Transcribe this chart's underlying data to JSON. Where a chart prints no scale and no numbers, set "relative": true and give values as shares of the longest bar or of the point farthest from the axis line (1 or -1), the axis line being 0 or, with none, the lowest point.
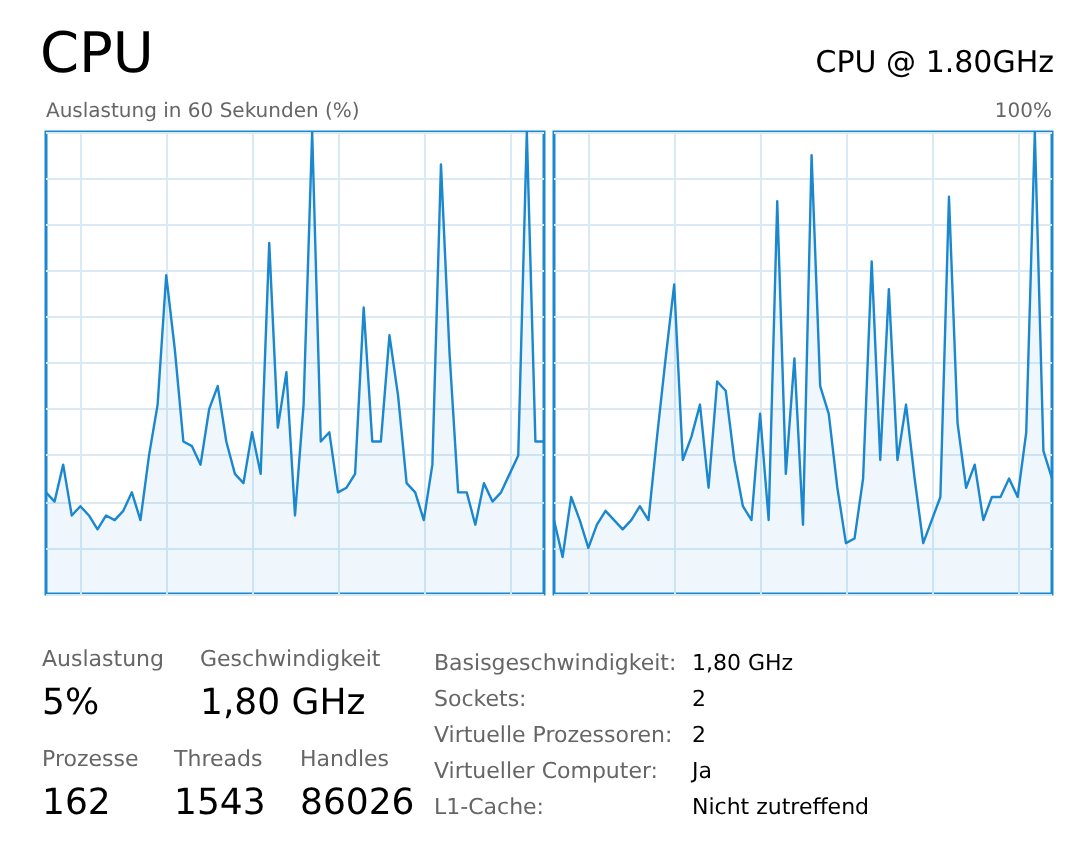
{
  "chart_data": [
    {
      "type": "other",
      "title": "CPU",
      "subtitle": "CPU @ 1.80GHz"
    },
    {
      "type": "area",
      "ylabel": "Auslastung in 60 Sekunden (%)",
      "color": "#1b87cf",
      "grid": true,
      "relative": true,
      "categories": [
        null,
        null,
        null,
        null,
        null,
        null,
        null,
        null,
        null,
        null,
        null,
        null,
        null,
        null,
        null,
        null,
        null,
        null,
        null,
        null,
        null,
        null,
        null,
        null,
        null,
        null,
        null,
        null,
        null,
        null,
        null,
        null,
        null,
        null,
        null,
        null,
        null,
        null,
        null,
        null,
        null,
        null,
        null,
        null,
        null,
        null,
        null,
        null,
        null,
        null,
        null,
        null,
        null,
        null,
        null,
        null,
        null,
        null,
        null
      ],
      "values": [
        0.22,
        0.2,
        0.28,
        0.17,
        0.19,
        0.17,
        0.14,
        0.17,
        0.16,
        0.18,
        0.22,
        0.16,
        0.3,
        0.41,
        0.69,
        0.53,
        0.33,
        0.32,
        0.28,
        0.4,
        0.45,
        0.33,
        0.26,
        0.24,
        0.35,
        0.26,
        0.76,
        0.36,
        0.48,
        0.17,
        0.41,
        1,
        0.33,
        0.35,
        0.22,
        0.23,
        0.26,
        0.62,
        0.33,
        0.33,
        0.56,
        0.43,
        0.24,
        0.22,
        0.16,
        0.28,
        0.93,
        0.52,
        0.22,
        0.22,
        0.15,
        0.24,
        0.2,
        0.22,
        0.26,
        0.3,
        1,
        0.33,
        0.33
      ]
    },
    {
      "type": "area",
      "color": "#1b87cf",
      "grid": true,
      "relative": true,
      "annotations": [
        "100%"
      ],
      "categories": [
        null,
        null,
        null,
        null,
        null,
        null,
        null,
        null,
        null,
        null,
        null,
        null,
        null,
        null,
        null,
        null,
        null,
        null,
        null,
        null,
        null,
        null,
        null,
        null,
        null,
        null,
        null,
        null,
        null,
        null,
        null,
        null,
        null,
        null,
        null,
        null,
        null,
        null,
        null,
        null,
        null,
        null,
        null,
        null,
        null,
        null,
        null,
        null,
        null,
        null,
        null,
        null,
        null,
        null,
        null,
        null,
        null,
        null,
        null
      ],
      "values": [
        0.16,
        0.08,
        0.21,
        0.16,
        0.1,
        0.15,
        0.18,
        0.16,
        0.14,
        0.16,
        0.19,
        0.16,
        0.34,
        0.51,
        0.67,
        0.29,
        0.34,
        0.41,
        0.23,
        0.46,
        0.44,
        0.29,
        0.19,
        0.16,
        0.39,
        0.16,
        0.85,
        0.26,
        0.51,
        0.15,
        0.95,
        0.45,
        0.39,
        0.23,
        0.11,
        0.12,
        0.25,
        0.72,
        0.29,
        0.66,
        0.29,
        0.41,
        0.25,
        0.11,
        0.16,
        0.21,
        0.86,
        0.37,
        0.23,
        0.28,
        0.16,
        0.21,
        0.21,
        0.25,
        0.21,
        0.35,
        1,
        0.31,
        0.25
      ]
    },
    {
      "type": "other",
      "annotations": [
        "Auslastung",
        "5%",
        "Geschwindigkeit",
        "1,80 GHz",
        "Prozesse",
        "162",
        "Threads",
        "1543",
        "Handles",
        "86026",
        "Basisgeschwindigkeit:",
        "1,80 GHz",
        "Sockets:",
        "2",
        "Virtuelle Prozessoren:",
        "2",
        "Virtueller Computer:",
        "Ja",
        "L1-Cache:",
        "Nicht zutreffend"
      ]
    }
  ]
}
